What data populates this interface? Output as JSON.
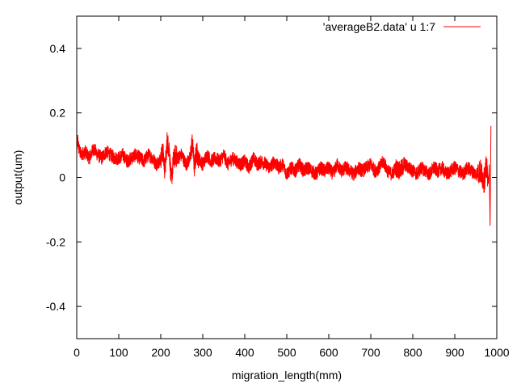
{
  "chart_data": {
    "type": "line",
    "title": "",
    "xlabel": "migration_length(mm)",
    "ylabel": "output(um)",
    "xlim": [
      0,
      1000
    ],
    "ylim": [
      -0.5,
      0.5
    ],
    "xticks": [
      0,
      100,
      200,
      300,
      400,
      500,
      600,
      700,
      800,
      900,
      1000
    ],
    "xtick_labels": [
      "0",
      "100",
      "200",
      "300",
      "400",
      "500",
      "600",
      "700",
      "800",
      "900",
      "1000"
    ],
    "yticks": [
      -0.4,
      -0.2,
      0,
      0.2,
      0.4
    ],
    "ytick_labels": [
      "-0.4",
      "-0.2",
      "0",
      "0.2",
      "0.4"
    ],
    "grid": false,
    "legend_position": "top-right",
    "series": [
      {
        "name": "'averageB2.data' u 1:7",
        "color": "#ff0000",
        "x": [
          0,
          2,
          5,
          10,
          20,
          30,
          40,
          50,
          60,
          70,
          80,
          90,
          100,
          110,
          120,
          130,
          140,
          150,
          160,
          170,
          180,
          190,
          200,
          205,
          210,
          215,
          220,
          225,
          230,
          235,
          240,
          250,
          260,
          270,
          275,
          280,
          285,
          290,
          300,
          310,
          320,
          330,
          340,
          350,
          360,
          370,
          380,
          390,
          400,
          410,
          420,
          430,
          440,
          450,
          460,
          470,
          480,
          490,
          500,
          510,
          520,
          530,
          540,
          550,
          560,
          570,
          580,
          590,
          600,
          610,
          620,
          630,
          640,
          650,
          660,
          670,
          680,
          690,
          700,
          710,
          720,
          730,
          740,
          750,
          760,
          770,
          780,
          790,
          800,
          810,
          820,
          830,
          840,
          850,
          860,
          870,
          880,
          890,
          900,
          910,
          920,
          930,
          940,
          950,
          960,
          970,
          975,
          978,
          980,
          982,
          984,
          986
        ],
        "y": [
          0.08,
          0.12,
          0.09,
          0.07,
          0.08,
          0.06,
          0.09,
          0.07,
          0.06,
          0.08,
          0.07,
          0.06,
          0.06,
          0.07,
          0.05,
          0.06,
          0.07,
          0.06,
          0.05,
          0.07,
          0.06,
          0.04,
          0.06,
          0.08,
          0.02,
          0.11,
          0.09,
          -0.01,
          0.05,
          0.07,
          0.06,
          0.07,
          0.04,
          0.06,
          0.11,
          0.03,
          0.08,
          0.06,
          0.04,
          0.07,
          0.05,
          0.06,
          0.05,
          0.07,
          0.04,
          0.06,
          0.05,
          0.04,
          0.05,
          0.03,
          0.06,
          0.04,
          0.05,
          0.04,
          0.03,
          0.05,
          0.03,
          0.04,
          0.01,
          0.03,
          0.02,
          0.04,
          0.02,
          0.03,
          0.02,
          0.01,
          0.03,
          0.02,
          0.03,
          0.01,
          0.04,
          0.02,
          0.03,
          0.02,
          0.01,
          0.03,
          0.02,
          0.03,
          0.04,
          0.02,
          0.03,
          0.05,
          0.02,
          0.01,
          0.03,
          0.02,
          0.04,
          0.03,
          0.02,
          0.01,
          0.03,
          0.02,
          0.01,
          0.03,
          0.02,
          0.03,
          0.01,
          0.02,
          0.03,
          0.02,
          0.01,
          0.03,
          0.02,
          0.01,
          0.02,
          -0.01,
          0.03,
          0.01,
          -0.02,
          0.04,
          -0.15,
          0.16
        ]
      }
    ]
  }
}
